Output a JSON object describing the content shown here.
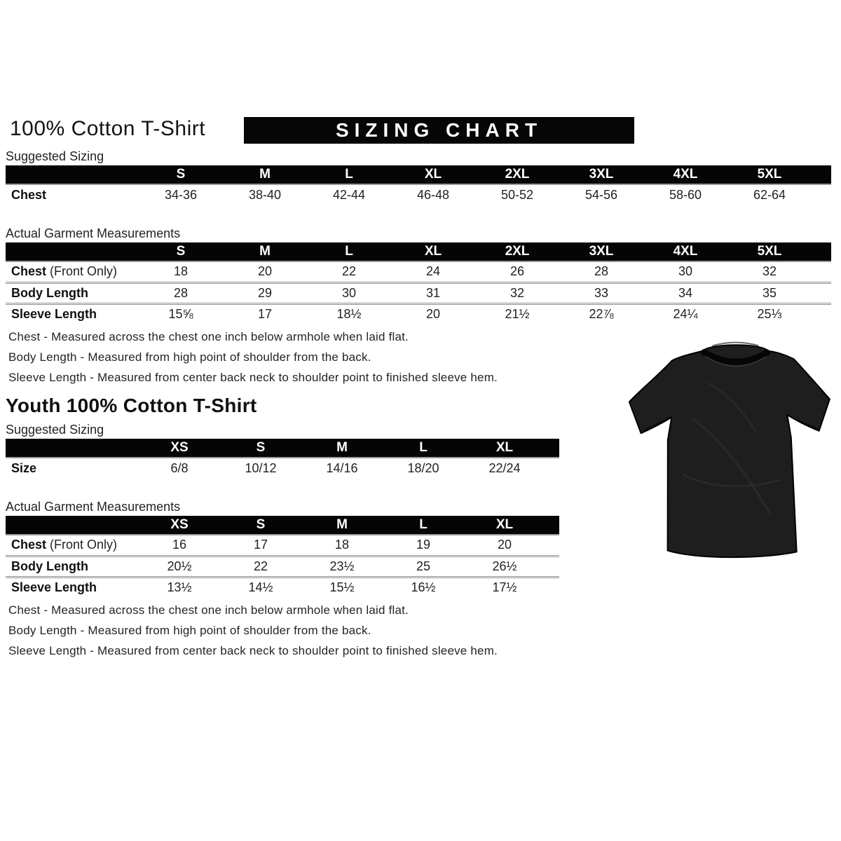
{
  "header": {
    "title": "100% Cotton T-Shirt",
    "banner": "SIZING CHART"
  },
  "adult": {
    "suggested": {
      "section_label": "Suggested Sizing",
      "columns": [
        "S",
        "M",
        "L",
        "XL",
        "2XL",
        "3XL",
        "4XL",
        "5XL"
      ],
      "rows": [
        {
          "label": "Chest",
          "label_suffix": "",
          "values": [
            "34-36",
            "38-40",
            "42-44",
            "46-48",
            "50-52",
            "54-56",
            "58-60",
            "62-64"
          ]
        }
      ]
    },
    "actual": {
      "section_label": "Actual Garment Measurements",
      "columns": [
        "S",
        "M",
        "L",
        "XL",
        "2XL",
        "3XL",
        "4XL",
        "5XL"
      ],
      "rows": [
        {
          "label": "Chest",
          "label_suffix": " (Front Only)",
          "values": [
            "18",
            "20",
            "22",
            "24",
            "26",
            "28",
            "30",
            "32"
          ]
        },
        {
          "label": "Body Length",
          "label_suffix": "",
          "values": [
            "28",
            "29",
            "30",
            "31",
            "32",
            "33",
            "34",
            "35"
          ]
        },
        {
          "label": "Sleeve Length",
          "label_suffix": "",
          "values": [
            "15⅝",
            "17",
            "18½",
            "20",
            "21½",
            "22⅞",
            "24¼",
            "25⅓"
          ]
        }
      ]
    },
    "notes": [
      "Chest - Measured across the chest one inch below armhole when laid flat.",
      "Body Length - Measured from high point of shoulder from the back.",
      "Sleeve Length - Measured from center back neck to shoulder point to finished sleeve hem."
    ]
  },
  "youth": {
    "title": "Youth 100% Cotton T-Shirt",
    "suggested": {
      "section_label": "Suggested Sizing",
      "columns": [
        "XS",
        "S",
        "M",
        "L",
        "XL"
      ],
      "rows": [
        {
          "label": "Size",
          "label_suffix": "",
          "values": [
            "6/8",
            "10/12",
            "14/16",
            "18/20",
            "22/24"
          ]
        }
      ]
    },
    "actual": {
      "section_label": "Actual Garment Measurements",
      "columns": [
        "XS",
        "S",
        "M",
        "L",
        "XL"
      ],
      "rows": [
        {
          "label": "Chest",
          "label_suffix": " (Front Only)",
          "values": [
            "16",
            "17",
            "18",
            "19",
            "20"
          ]
        },
        {
          "label": "Body Length",
          "label_suffix": "",
          "values": [
            "20½",
            "22",
            "23½",
            "25",
            "26½"
          ]
        },
        {
          "label": "Sleeve Length",
          "label_suffix": "",
          "values": [
            "13½",
            "14½",
            "15½",
            "16½",
            "17½"
          ]
        }
      ]
    },
    "notes": [
      "Chest - Measured across the chest one inch below armhole when laid flat.",
      "Body Length - Measured from high point of shoulder from the back.",
      "Sleeve Length - Measured from center back neck to shoulder point to finished sleeve hem."
    ]
  },
  "tshirt": {
    "body_color": "#1e1e1e",
    "outline_color": "#0a0a0a"
  },
  "colors": {
    "header_bar": "#050505",
    "separator": "#8f8f8f"
  }
}
